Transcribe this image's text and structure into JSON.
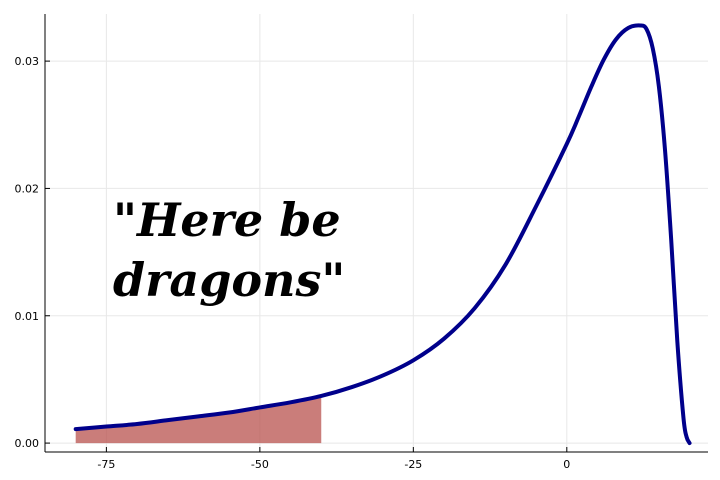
{
  "chart_data": {
    "type": "line",
    "title": "",
    "xlabel": "",
    "ylabel": "",
    "xlim": [
      -85,
      23
    ],
    "ylim": [
      -0.0007,
      0.0337
    ],
    "x_ticks": [
      -75,
      -50,
      -25,
      0
    ],
    "x_tick_labels": [
      "-75",
      "-50",
      "-25",
      "0"
    ],
    "y_ticks": [
      0.0,
      0.01,
      0.02,
      0.03
    ],
    "y_tick_labels": [
      "0.00",
      "0.01",
      "0.02",
      "0.03"
    ],
    "grid": true,
    "legend": "none",
    "series": [
      {
        "color": "#00008b",
        "x": [
          -80,
          -75,
          -70,
          -65,
          -60,
          -55,
          -50,
          -45,
          -40,
          -35,
          -30,
          -25,
          -20,
          -15,
          -10,
          -5,
          0,
          2,
          4,
          6,
          8,
          10,
          12,
          13,
          14,
          15,
          16,
          17,
          18,
          19,
          19.5,
          20
        ],
        "y": [
          0.0011,
          0.0013,
          0.0015,
          0.0018,
          0.0021,
          0.0024,
          0.0028,
          0.0032,
          0.0037,
          0.0044,
          0.0053,
          0.0065,
          0.0082,
          0.0106,
          0.014,
          0.0186,
          0.0235,
          0.0257,
          0.028,
          0.0301,
          0.0317,
          0.0326,
          0.0328,
          0.0325,
          0.031,
          0.028,
          0.023,
          0.016,
          0.008,
          0.002,
          0.0005,
          0.0
        ]
      }
    ],
    "shaded_region": {
      "x_from": -80,
      "x_to": -40,
      "color": "#b8524e"
    },
    "annotation": {
      "lines": [
        "\"Here be",
        "dragons\""
      ]
    }
  }
}
